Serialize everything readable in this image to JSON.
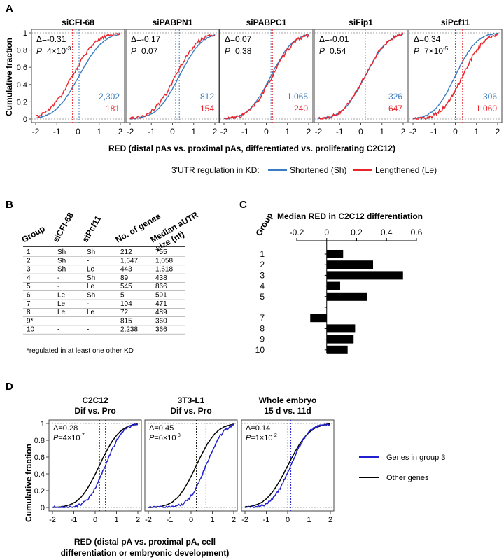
{
  "figure": {
    "panel_labels": [
      "A",
      "B",
      "C",
      "D"
    ]
  },
  "panel_a": {
    "ylabel": "Cumulative fraction",
    "xlabel": "RED (distal pAs vs. proximal pAs, differentiated vs. proliferating C2C12)",
    "y_ticks": [
      "0",
      "0.2",
      "0.4",
      "0.6",
      "0.8",
      "1"
    ],
    "x_ticks": [
      "-2",
      "-1",
      "0",
      "1",
      "2"
    ],
    "legend_title": "3'UTR regulation in KD:",
    "legend_items": [
      {
        "label": "Shortened (Sh)",
        "color": "#3a7cc0"
      },
      {
        "label": "Lengthened (Le)",
        "color": "#e8232a"
      }
    ],
    "plots": [
      {
        "title": "siCFI-68",
        "delta": "Δ=-0.31",
        "p_label": "P",
        "p_value": "=4×10",
        "p_exp": "-3",
        "n_sh": "2,302",
        "n_le": "181",
        "mean_sh": 0.05,
        "mean_le": -0.26,
        "sd": 0.9
      },
      {
        "title": "siPABPN1",
        "delta": "Δ=-0.17",
        "p_label": "P",
        "p_value": "=0.07",
        "p_exp": "",
        "n_sh": "812",
        "n_le": "154",
        "mean_sh": 0.32,
        "mean_le": 0.15,
        "sd": 0.85
      },
      {
        "title": "siPABPC1",
        "delta": "Δ=0.07",
        "p_label": "P",
        "p_value": "=0.38",
        "p_exp": "",
        "n_sh": "1,065",
        "n_le": "240",
        "mean_sh": 0.22,
        "mean_le": 0.29,
        "sd": 0.85
      },
      {
        "title": "siFip1",
        "delta": "Δ=-0.01",
        "p_label": "P",
        "p_value": "=0.54",
        "p_exp": "",
        "n_sh": "326",
        "n_le": "647",
        "mean_sh": 0.21,
        "mean_le": 0.2,
        "sd": 0.85
      },
      {
        "title": "siPcf11",
        "delta": "Δ=0.34",
        "p_label": "P",
        "p_value": "=7×10",
        "p_exp": "-5",
        "n_sh": "306",
        "n_le": "1,060",
        "mean_sh": 0.0,
        "mean_le": 0.34,
        "sd": 0.8
      }
    ]
  },
  "panel_b": {
    "headers": [
      "Group",
      "siCFI-68",
      "siPcf11",
      "No. of genes",
      "Median aUTR size (nt)"
    ],
    "rows": [
      [
        "1",
        "Sh",
        "Sh",
        "212",
        "755"
      ],
      [
        "2",
        "Sh",
        "-",
        "1,647",
        "1,058"
      ],
      [
        "3",
        "Sh",
        "Le",
        "443",
        "1,618"
      ],
      [
        "4",
        "-",
        "Sh",
        "89",
        "438"
      ],
      [
        "5",
        "-",
        "Le",
        "545",
        "866"
      ],
      [
        "6",
        "Le",
        "Sh",
        "5",
        "591"
      ],
      [
        "7",
        "Le",
        "-",
        "104",
        "471"
      ],
      [
        "8",
        "Le",
        "Le",
        "72",
        "489"
      ],
      [
        "9*",
        "-",
        "-",
        "815",
        "360"
      ],
      [
        "10",
        "-",
        "-",
        "2,238",
        "366"
      ]
    ],
    "footnote": "*regulated in at least one other KD"
  },
  "chart_data": [
    {
      "type": "bar",
      "orientation": "horizontal",
      "title": "Median RED in C2C12 differentiation",
      "ylabel": "Group",
      "categories": [
        "1",
        "2",
        "3",
        "4",
        "5",
        "7",
        "8",
        "9",
        "10"
      ],
      "values": [
        0.11,
        0.31,
        0.51,
        0.09,
        0.27,
        -0.11,
        0.19,
        0.18,
        0.14
      ],
      "xlim": [
        -0.2,
        0.6
      ],
      "x_ticks": [
        "-0.2",
        "0",
        "0.2",
        "0.4",
        "0.6"
      ],
      "bar_color": "#000000"
    },
    {
      "type": "line",
      "description_of_series": "cumulative distribution curves",
      "ylabel": "Cumulative fraction",
      "xlabel": "RED (distal pA vs. proximal pA, cell differentiation or embryonic development)",
      "xlim": [
        -2,
        2
      ],
      "ylim": [
        0,
        1
      ],
      "x_ticks": [
        "-2",
        "-1",
        "0",
        "1",
        "2"
      ],
      "y_ticks": [
        "0",
        "0.2",
        "0.4",
        "0.6",
        "0.8",
        "1"
      ],
      "legend": [
        {
          "label": "Genes in group 3",
          "color": "#2020d0"
        },
        {
          "label": "Other genes",
          "color": "#000000"
        }
      ],
      "plots": [
        {
          "title1": "C2C12",
          "title2": "Dif vs. Pro",
          "delta": "Δ=0.28",
          "p_label": "P",
          "p_value": "=4×10",
          "p_exp": "-7",
          "median_group3": 0.48,
          "median_other": 0.2,
          "sd": 0.75
        },
        {
          "title1": "3T3-L1",
          "title2": "Dif vs. Pro",
          "delta": "Δ=0.45",
          "p_label": "P",
          "p_value": "=6×10",
          "p_exp": "-8",
          "median_group3": 0.7,
          "median_other": 0.25,
          "sd": 0.75
        },
        {
          "title1": "Whole embryo",
          "title2": "15 d vs. 11d",
          "delta": "Δ=0.14",
          "p_label": "P",
          "p_value": "=1×10",
          "p_exp": "-2",
          "median_group3": 0.15,
          "median_other": 0.01,
          "sd": 0.8
        }
      ]
    }
  ]
}
